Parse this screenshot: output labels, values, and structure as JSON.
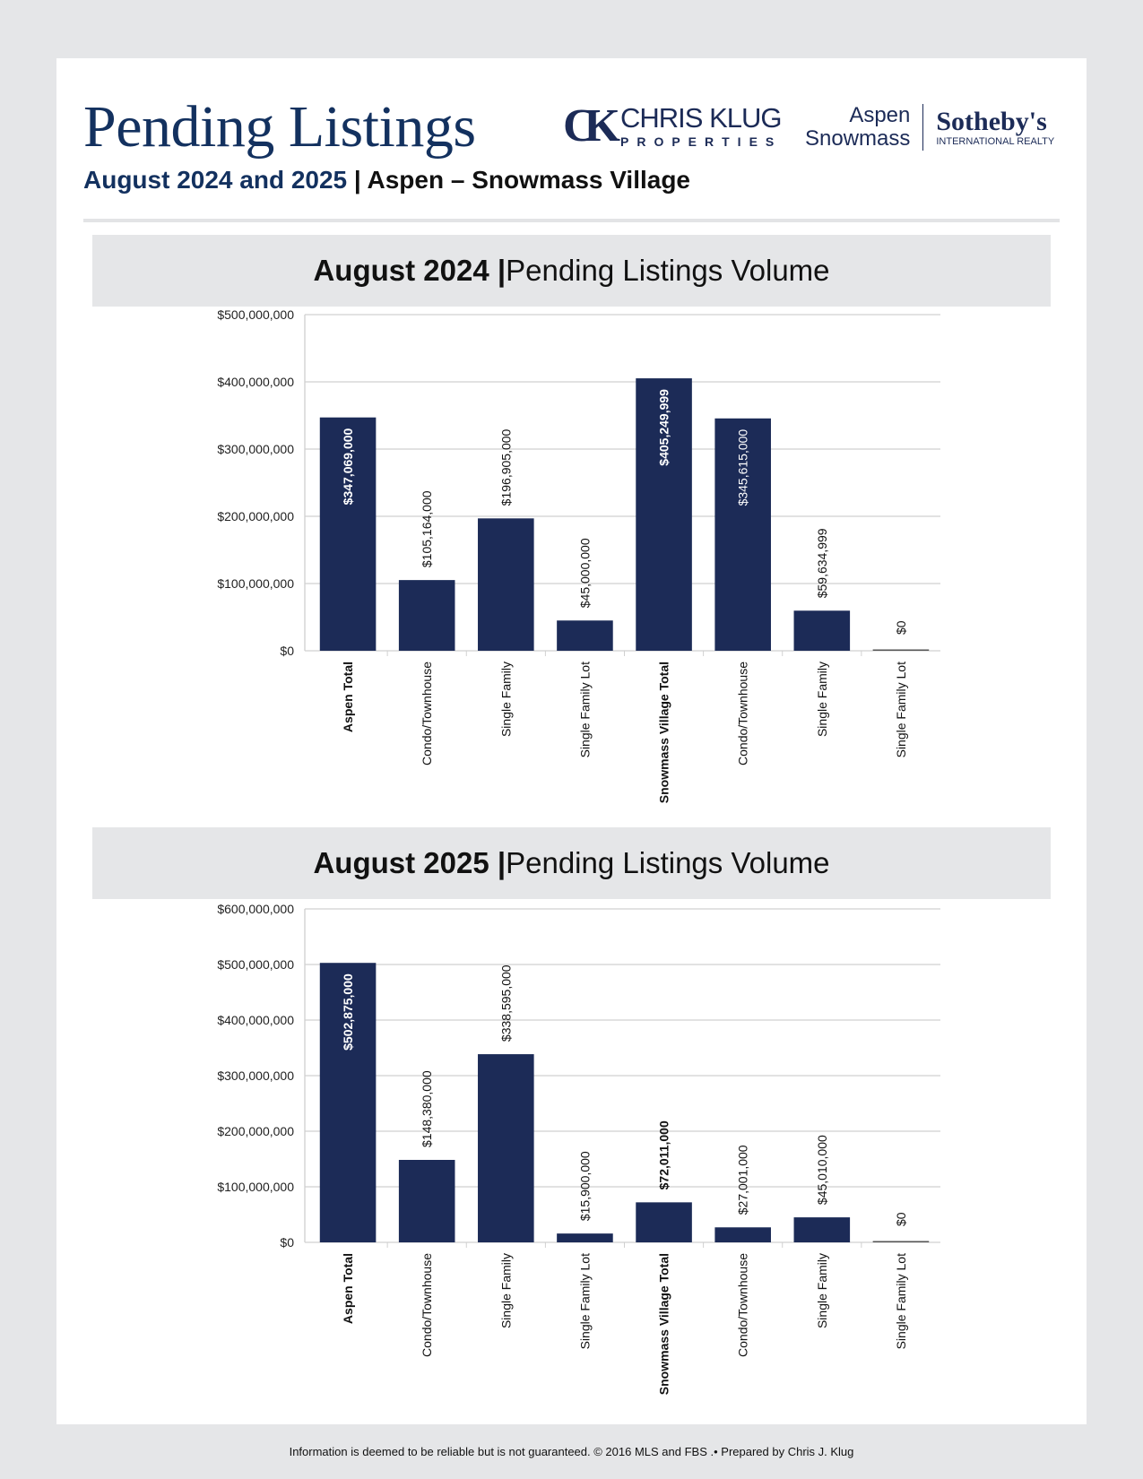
{
  "header": {
    "title": "Pending Listings",
    "subtitle_blue": "August 2024 and 2025",
    "subtitle_sep": " | ",
    "subtitle_black": "Aspen – Snowmass Village",
    "logo_ck_mark": "CK",
    "logo_ck_name": "CHRIS KLUG",
    "logo_ck_sub": "PROPERTIES",
    "logo_sir_line1": "Aspen",
    "logo_sir_line2": "Snowmass",
    "logo_sir_brand": "Sotheby's",
    "logo_sir_sub": "INTERNATIONAL REALTY"
  },
  "colors": {
    "bar": "#1c2b57",
    "title": "#13315f",
    "grid": "#d0d0d0"
  },
  "chart_data": [
    {
      "type": "bar",
      "title_bold": "August 2024 |",
      "title_rest": " Pending Listings Volume",
      "categories": [
        "Aspen Total",
        "Condo/Townhouse",
        "Single Family",
        "Single Family Lot",
        "Snowmass Village Total",
        "Condo/Townhouse",
        "Single Family",
        "Single Family Lot"
      ],
      "bold_categories": [
        0,
        4
      ],
      "values": [
        347069000,
        105164000,
        196905000,
        45000000,
        405249999,
        345615000,
        59634999,
        0
      ],
      "labels": [
        "$347,069,000",
        "$105,164,000",
        "$196,905,000",
        "$45,000,000",
        "$405,249,999",
        "$345,615,000",
        "$59,634,999",
        "$0"
      ],
      "labels_inside": [
        0,
        4,
        5
      ],
      "ylim": [
        0,
        500000000
      ],
      "yticks": [
        0,
        100000000,
        200000000,
        300000000,
        400000000,
        500000000
      ],
      "ytick_labels": [
        "$0",
        "$100,000,000",
        "$200,000,000",
        "$300,000,000",
        "$400,000,000",
        "$500,000,000"
      ],
      "grid": true
    },
    {
      "type": "bar",
      "title_bold": "August 2025 |",
      "title_rest": " Pending Listings Volume",
      "categories": [
        "Aspen Total",
        "Condo/Townhouse",
        "Single Family",
        "Single Family Lot",
        "Snowmass Village Total",
        "Condo/Townhouse",
        "Single Family",
        "Single Family Lot"
      ],
      "bold_categories": [
        0,
        4
      ],
      "values": [
        502875000,
        148380000,
        338595000,
        15900000,
        72011000,
        27001000,
        45010000,
        0
      ],
      "labels": [
        "$502,875,000",
        "$148,380,000",
        "$338,595,000",
        "$15,900,000",
        "$72,011,000",
        "$27,001,000",
        "$45,010,000",
        "$0"
      ],
      "labels_inside": [
        0
      ],
      "ylim": [
        0,
        600000000
      ],
      "yticks": [
        0,
        100000000,
        200000000,
        300000000,
        400000000,
        500000000,
        600000000
      ],
      "ytick_labels": [
        "$0",
        "$100,000,000",
        "$200,000,000",
        "$300,000,000",
        "$400,000,000",
        "$500,000,000",
        "$600,000,000"
      ],
      "grid": true
    }
  ],
  "footer": "Information is deemed to be reliable but is not guaranteed. © 2016 MLS and FBS .• Prepared by Chris J. Klug"
}
